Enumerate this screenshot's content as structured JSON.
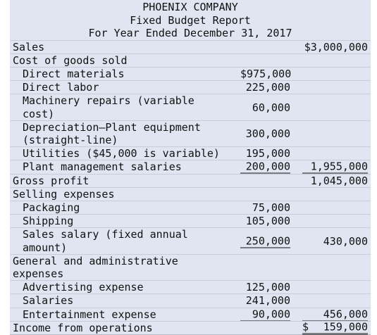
{
  "header": {
    "company": "PHOENIX COMPANY",
    "report_name": "Fixed Budget Report",
    "period": "For Year Ended December 31, 2017"
  },
  "rows": [
    {
      "label": [
        "Sales"
      ],
      "indent": false,
      "col1": "",
      "col2": "$3,000,000"
    },
    {
      "label": [
        "Cost of goods sold"
      ],
      "indent": false,
      "col1": "",
      "col2": ""
    },
    {
      "label": [
        "Direct materials"
      ],
      "indent": true,
      "col1": "$975,000",
      "col2": ""
    },
    {
      "label": [
        "Direct labor"
      ],
      "indent": true,
      "col1": "225,000",
      "col2": ""
    },
    {
      "label": [
        "Machinery repairs (variable",
        "cost)"
      ],
      "indent": true,
      "col1": "60,000",
      "col2": ""
    },
    {
      "label": [
        "Depreciation—Plant equipment",
        "(straight-line)"
      ],
      "indent": true,
      "col1": "300,000",
      "col2": ""
    },
    {
      "label": [
        "Utilities ($45,000 is variable)"
      ],
      "indent": true,
      "col1": "195,000",
      "col2": ""
    },
    {
      "label": [
        "Plant management salaries"
      ],
      "indent": true,
      "col1": "200,000",
      "col2": "1,955,000",
      "ul1": true,
      "ul2": true
    },
    {
      "label": [
        "Gross profit"
      ],
      "indent": false,
      "col1": "",
      "col2": "1,045,000"
    },
    {
      "label": [
        "Selling expenses"
      ],
      "indent": false,
      "col1": "",
      "col2": ""
    },
    {
      "label": [
        "Packaging"
      ],
      "indent": true,
      "col1": "75,000",
      "col2": ""
    },
    {
      "label": [
        "Shipping"
      ],
      "indent": true,
      "col1": "105,000",
      "col2": ""
    },
    {
      "label": [
        "Sales salary (fixed annual",
        "amount)"
      ],
      "indent": true,
      "col1": "250,000",
      "col2": "430,000",
      "ul1": true
    },
    {
      "label": [
        "General and administrative",
        "expenses"
      ],
      "indent": false,
      "col1": "",
      "col2": ""
    },
    {
      "label": [
        "Advertising expense"
      ],
      "indent": true,
      "col1": "125,000",
      "col2": ""
    },
    {
      "label": [
        "Salaries"
      ],
      "indent": true,
      "col1": "241,000",
      "col2": ""
    },
    {
      "label": [
        "Entertainment expense"
      ],
      "indent": true,
      "col1": "90,000",
      "col2": "456,000",
      "ul1": true,
      "ul2": true
    },
    {
      "label": [
        "Income from operations"
      ],
      "indent": false,
      "col1": "",
      "col2": "159,000",
      "currency": "$",
      "dul2": true
    }
  ]
}
